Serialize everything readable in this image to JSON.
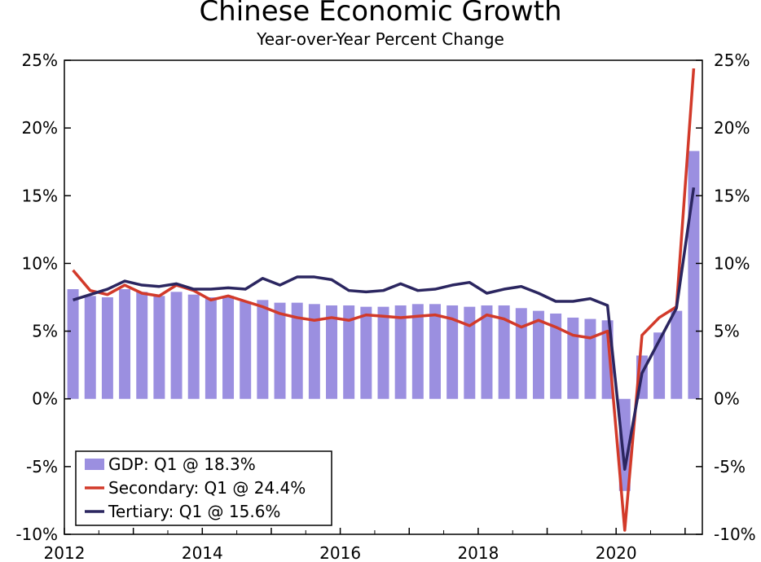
{
  "chart_data": {
    "type": "bar+line",
    "title": "Chinese Economic Growth",
    "subtitle": "Year-over-Year Percent Change",
    "ylim": [
      -10,
      25
    ],
    "y_ticks": [
      "25%",
      "20%",
      "15%",
      "10%",
      "5%",
      "0%",
      "-5%",
      "-10%"
    ],
    "x_ticks": [
      "2012",
      "2014",
      "2016",
      "2018",
      "2020"
    ],
    "xlim": [
      2012.0,
      2021.25
    ],
    "grid": false,
    "legend_position": "bottom-left",
    "x": [
      2012.25,
      2012.5,
      2012.75,
      2013.0,
      2013.25,
      2013.5,
      2013.75,
      2014.0,
      2014.25,
      2014.5,
      2014.75,
      2015.0,
      2015.25,
      2015.5,
      2015.75,
      2016.0,
      2016.25,
      2016.5,
      2016.75,
      2017.0,
      2017.25,
      2017.5,
      2017.75,
      2018.0,
      2018.25,
      2018.5,
      2018.75,
      2019.0,
      2019.25,
      2019.5,
      2019.75,
      2020.0,
      2020.25,
      2020.5,
      2020.75,
      2021.0,
      2021.25
    ],
    "series": [
      {
        "name": "GDP: Q1 @ 18.3%",
        "kind": "bar",
        "color": "#9b8fe0",
        "values": [
          8.1,
          7.6,
          7.5,
          8.1,
          7.9,
          7.6,
          7.9,
          7.7,
          7.5,
          7.6,
          7.2,
          7.3,
          7.1,
          7.1,
          7.0,
          6.9,
          6.9,
          6.8,
          6.8,
          6.9,
          7.0,
          7.0,
          6.9,
          6.8,
          6.9,
          6.9,
          6.7,
          6.5,
          6.3,
          6.0,
          5.9,
          5.8,
          -6.8,
          3.2,
          4.9,
          6.5,
          18.3
        ]
      },
      {
        "name": "Secondary: Q1 @ 24.4%",
        "kind": "line",
        "color": "#d23a2a",
        "values": [
          9.5,
          8.0,
          7.7,
          8.4,
          7.8,
          7.6,
          8.4,
          8.0,
          7.3,
          7.6,
          7.2,
          6.8,
          6.3,
          6.0,
          5.8,
          6.0,
          5.8,
          6.2,
          6.1,
          6.0,
          6.1,
          6.2,
          5.9,
          5.4,
          6.2,
          5.9,
          5.3,
          5.8,
          5.3,
          4.7,
          4.5,
          5.0,
          -9.7,
          4.7,
          6.0,
          6.8,
          24.4
        ]
      },
      {
        "name": "Tertiary: Q1 @ 15.6%",
        "kind": "line",
        "color": "#2b2660",
        "values": [
          7.3,
          7.7,
          8.1,
          8.7,
          8.4,
          8.3,
          8.5,
          8.1,
          8.1,
          8.2,
          8.1,
          8.9,
          8.4,
          9.0,
          9.0,
          8.8,
          8.0,
          7.9,
          8.0,
          8.5,
          8.0,
          8.1,
          8.4,
          8.6,
          7.8,
          8.1,
          8.3,
          7.8,
          7.2,
          7.2,
          7.4,
          6.9,
          -5.2,
          1.9,
          4.3,
          6.7,
          15.6
        ]
      }
    ]
  }
}
